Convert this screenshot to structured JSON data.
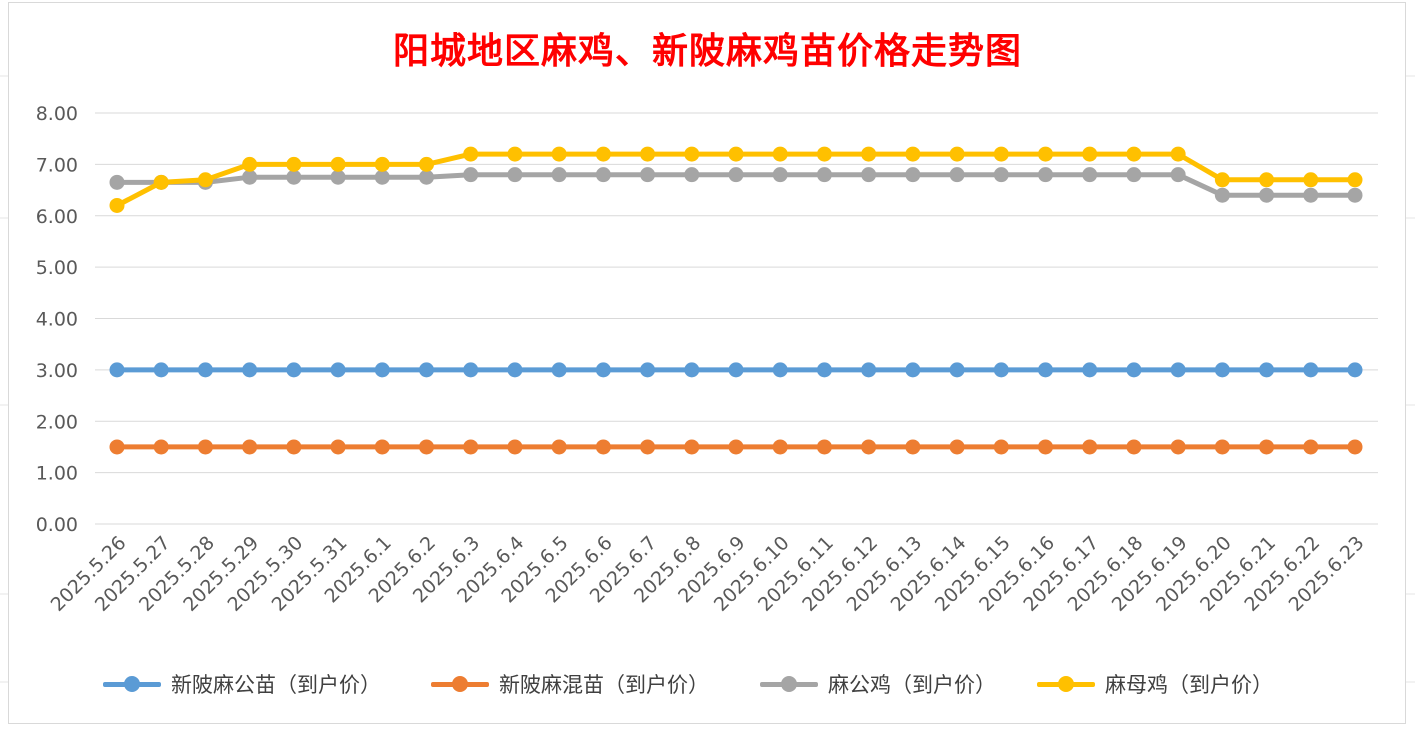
{
  "chart_data": {
    "type": "line",
    "title": "阳城地区麻鸡、新陂麻鸡苗价格走势图",
    "xlabel": "",
    "ylabel": "",
    "ylim": [
      0,
      8
    ],
    "y_ticks": [
      "0.00",
      "1.00",
      "2.00",
      "3.00",
      "4.00",
      "5.00",
      "6.00",
      "7.00",
      "8.00"
    ],
    "grid": true,
    "legend_position": "bottom",
    "categories": [
      "2025.5.26",
      "2025.5.27",
      "2025.5.28",
      "2025.5.29",
      "2025.5.30",
      "2025.5.31",
      "2025.6.1",
      "2025.6.2",
      "2025.6.3",
      "2025.6.4",
      "2025.6.5",
      "2025.6.6",
      "2025.6.7",
      "2025.6.8",
      "2025.6.9",
      "2025.6.10",
      "2025.6.11",
      "2025.6.12",
      "2025.6.13",
      "2025.6.14",
      "2025.6.15",
      "2025.6.16",
      "2025.6.17",
      "2025.6.18",
      "2025.6.19",
      "2025.6.20",
      "2025.6.21",
      "2025.6.22",
      "2025.6.23"
    ],
    "series": [
      {
        "name": "新陂麻公苗（到户价）",
        "color": "#5b9bd5",
        "values": [
          3.0,
          3.0,
          3.0,
          3.0,
          3.0,
          3.0,
          3.0,
          3.0,
          3.0,
          3.0,
          3.0,
          3.0,
          3.0,
          3.0,
          3.0,
          3.0,
          3.0,
          3.0,
          3.0,
          3.0,
          3.0,
          3.0,
          3.0,
          3.0,
          3.0,
          3.0,
          3.0,
          3.0,
          3.0
        ]
      },
      {
        "name": "新陂麻混苗（到户价）",
        "color": "#ed7d31",
        "values": [
          1.5,
          1.5,
          1.5,
          1.5,
          1.5,
          1.5,
          1.5,
          1.5,
          1.5,
          1.5,
          1.5,
          1.5,
          1.5,
          1.5,
          1.5,
          1.5,
          1.5,
          1.5,
          1.5,
          1.5,
          1.5,
          1.5,
          1.5,
          1.5,
          1.5,
          1.5,
          1.5,
          1.5,
          1.5
        ]
      },
      {
        "name": "麻公鸡（到户价）",
        "color": "#a5a5a5",
        "values": [
          6.65,
          6.65,
          6.65,
          6.75,
          6.75,
          6.75,
          6.75,
          6.75,
          6.8,
          6.8,
          6.8,
          6.8,
          6.8,
          6.8,
          6.8,
          6.8,
          6.8,
          6.8,
          6.8,
          6.8,
          6.8,
          6.8,
          6.8,
          6.8,
          6.8,
          6.4,
          6.4,
          6.4,
          6.4
        ]
      },
      {
        "name": "麻母鸡（到户价）",
        "color": "#ffc000",
        "values": [
          6.2,
          6.65,
          6.7,
          7.0,
          7.0,
          7.0,
          7.0,
          7.0,
          7.2,
          7.2,
          7.2,
          7.2,
          7.2,
          7.2,
          7.2,
          7.2,
          7.2,
          7.2,
          7.2,
          7.2,
          7.2,
          7.2,
          7.2,
          7.2,
          7.2,
          6.7,
          6.7,
          6.7,
          6.7
        ]
      }
    ]
  }
}
